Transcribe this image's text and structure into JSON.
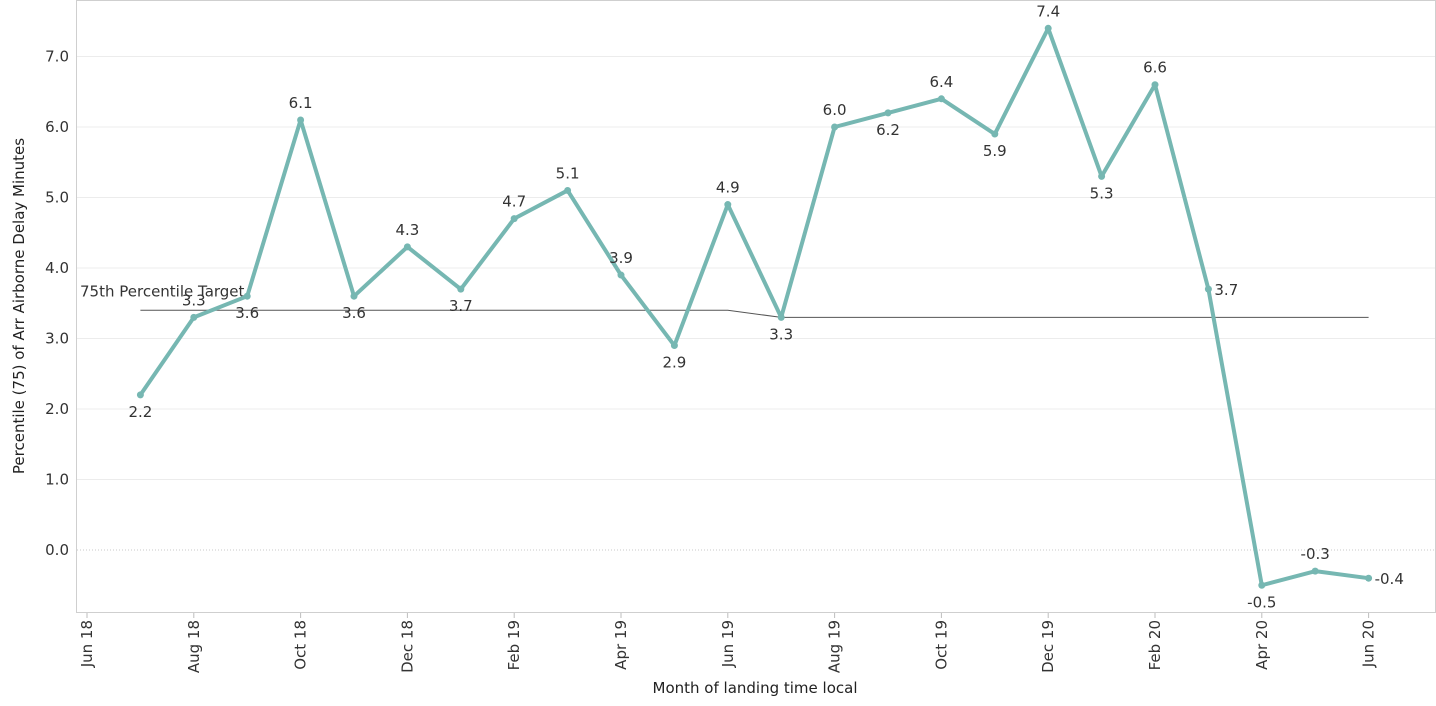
{
  "chart_data": {
    "type": "line",
    "xlabel": "Month of landing time local",
    "ylabel": "Percentile (75) of Arr Airborne Delay Minutes",
    "ylim": [
      -0.9,
      7.8
    ],
    "yticks": [
      "0.0",
      "1.0",
      "2.0",
      "3.0",
      "4.0",
      "5.0",
      "6.0",
      "7.0"
    ],
    "ytick_values": [
      0,
      1,
      2,
      3,
      4,
      5,
      6,
      7
    ],
    "xticks": [
      "Jun 18",
      "Aug 18",
      "Oct 18",
      "Dec 18",
      "Feb 19",
      "Apr 19",
      "Jun 19",
      "Aug 19",
      "Oct 19",
      "Dec 19",
      "Feb 20",
      "Apr 20",
      "Jun 20"
    ],
    "xtick_index": [
      0,
      2,
      4,
      6,
      8,
      10,
      12,
      14,
      16,
      18,
      20,
      22,
      24
    ],
    "grid": true,
    "series": [
      {
        "color": "#76b7b2",
        "x_index": [
          1,
          2,
          3,
          4,
          5,
          6,
          7,
          8,
          9,
          10,
          11,
          12,
          13,
          14,
          15,
          16,
          17,
          18,
          19,
          20,
          21,
          22,
          23,
          24
        ],
        "values": [
          2.2,
          3.3,
          3.6,
          6.1,
          3.6,
          4.3,
          3.7,
          4.7,
          5.1,
          3.9,
          2.9,
          4.9,
          3.3,
          6.0,
          6.2,
          6.4,
          5.9,
          7.4,
          5.3,
          6.6,
          3.7,
          -0.5,
          -0.3,
          -0.4
        ],
        "labels": [
          "2.2",
          "3.3",
          "3.6",
          "6.1",
          "3.6",
          "4.3",
          "3.7",
          "4.7",
          "5.1",
          "3.9",
          "2.9",
          "4.9",
          "3.3",
          "6.0",
          "6.2",
          "6.4",
          "5.9",
          "7.4",
          "5.3",
          "6.6",
          "3.7",
          "-0.5",
          "-0.3",
          "-0.4"
        ]
      }
    ],
    "target_line": {
      "label": "75th Percentile Target",
      "color": "#555555",
      "x_index": [
        1,
        12,
        13,
        24
      ],
      "values": [
        3.4,
        3.4,
        3.3,
        3.3
      ]
    }
  }
}
